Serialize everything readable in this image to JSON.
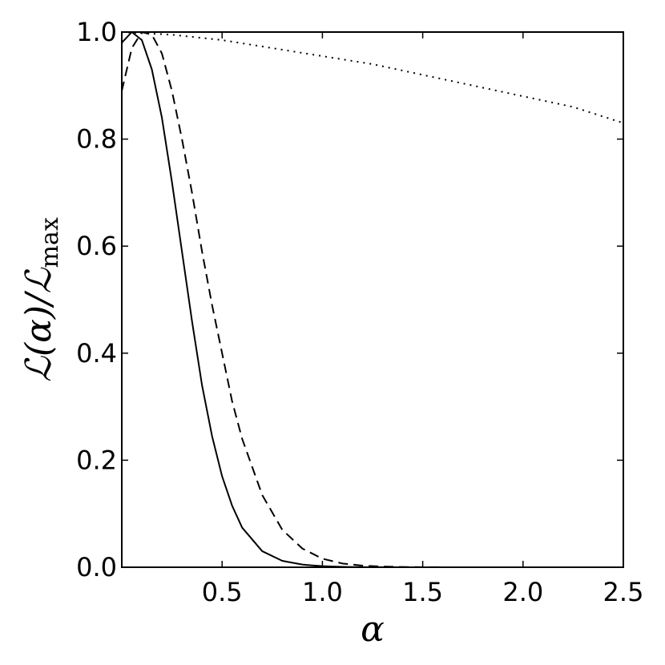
{
  "chart_data": {
    "type": "line",
    "title": "",
    "xlabel": "α",
    "ylabel": {
      "main": "ℒ(α)/ℒ",
      "subscript": "max"
    },
    "xlim": [
      0,
      2.5
    ],
    "ylim": [
      0,
      1.0
    ],
    "x_ticks": [
      0.5,
      1.0,
      1.5,
      2.0,
      2.5
    ],
    "x_tick_labels": [
      "0.5",
      "1.0",
      "1.5",
      "2.0",
      "2.5"
    ],
    "y_ticks": [
      0.0,
      0.2,
      0.4,
      0.6,
      0.8,
      1.0
    ],
    "y_tick_labels": [
      "0.0",
      "0.2",
      "0.4",
      "0.6",
      "0.8",
      "1.0"
    ],
    "grid": false,
    "series": [
      {
        "style": "solid",
        "color": "#000000",
        "x": [
          0.0,
          0.05,
          0.1,
          0.15,
          0.2,
          0.25,
          0.3,
          0.35,
          0.4,
          0.45,
          0.5,
          0.55,
          0.6,
          0.7,
          0.8,
          0.9,
          1.0,
          1.1,
          1.2,
          1.3,
          1.5,
          2.0,
          2.5
        ],
        "y": [
          0.98,
          1.0,
          0.985,
          0.93,
          0.84,
          0.72,
          0.59,
          0.46,
          0.34,
          0.245,
          0.17,
          0.115,
          0.074,
          0.03,
          0.012,
          0.005,
          0.002,
          0.0007,
          0.0002,
          0.0001,
          0.0,
          0.0,
          0.0
        ]
      },
      {
        "style": "dashed",
        "color": "#000000",
        "x": [
          0.0,
          0.05,
          0.1,
          0.15,
          0.2,
          0.25,
          0.3,
          0.35,
          0.4,
          0.45,
          0.5,
          0.55,
          0.6,
          0.7,
          0.8,
          0.9,
          1.0,
          1.1,
          1.2,
          1.3,
          1.4,
          1.5,
          1.7,
          2.0,
          2.5
        ],
        "y": [
          0.89,
          0.97,
          1.0,
          0.995,
          0.96,
          0.89,
          0.8,
          0.7,
          0.59,
          0.49,
          0.4,
          0.31,
          0.24,
          0.135,
          0.07,
          0.035,
          0.016,
          0.007,
          0.003,
          0.0013,
          0.0005,
          0.0002,
          0.0,
          0.0,
          0.0
        ]
      },
      {
        "style": "dotted",
        "color": "#000000",
        "x": [
          0.0,
          0.25,
          0.5,
          0.75,
          1.0,
          1.25,
          1.5,
          1.75,
          2.0,
          2.25,
          2.5
        ],
        "y": [
          1.0,
          0.995,
          0.985,
          0.97,
          0.955,
          0.94,
          0.92,
          0.9,
          0.88,
          0.86,
          0.83
        ]
      }
    ]
  }
}
